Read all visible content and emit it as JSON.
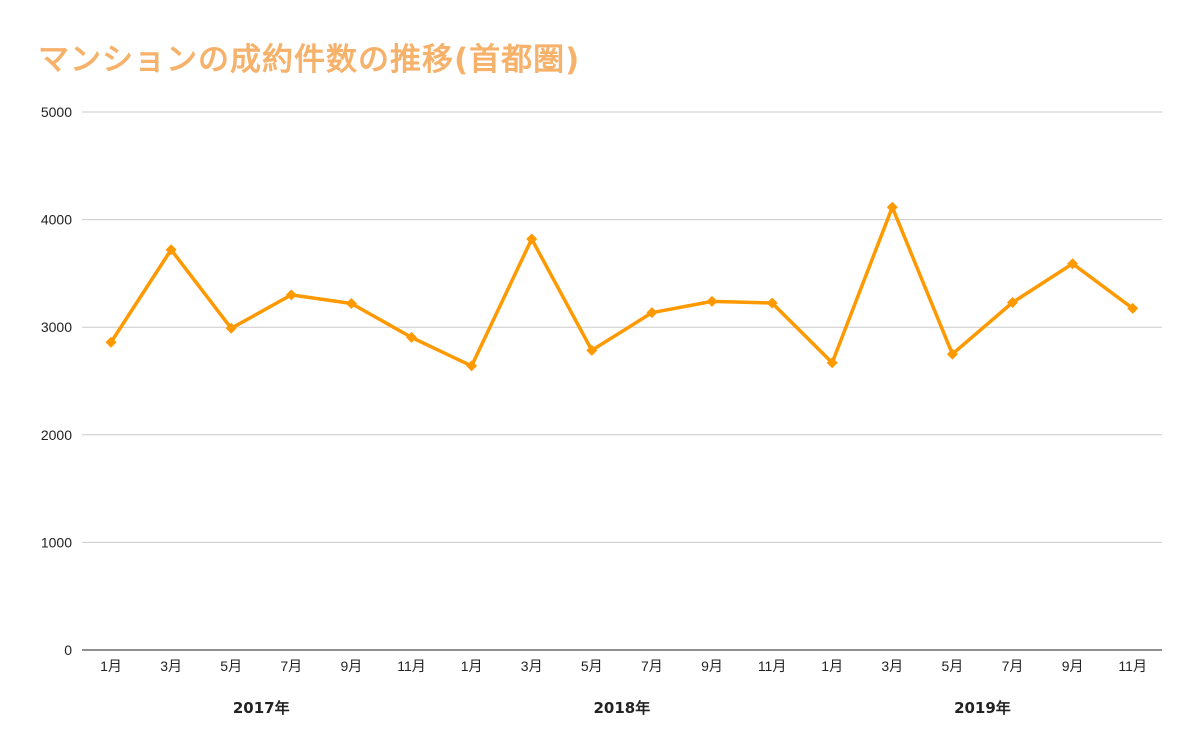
{
  "chart_data": {
    "type": "line",
    "title": "マンションの成約件数の推移(首都圏)",
    "xlabel": "",
    "ylabel": "",
    "ylim": [
      0,
      5000
    ],
    "yticks": [
      0,
      1000,
      2000,
      3000,
      4000,
      5000
    ],
    "grid": true,
    "legend": "none",
    "categories": [
      "1月",
      "3月",
      "5月",
      "7月",
      "9月",
      "11月",
      "1月",
      "3月",
      "5月",
      "7月",
      "9月",
      "11月",
      "1月",
      "3月",
      "5月",
      "7月",
      "9月",
      "11月"
    ],
    "groups": [
      {
        "label": "2017年",
        "start": 0,
        "end": 5
      },
      {
        "label": "2018年",
        "start": 6,
        "end": 11
      },
      {
        "label": "2019年",
        "start": 12,
        "end": 17
      }
    ],
    "series": [
      {
        "values": [
          2860,
          3720,
          2990,
          3300,
          3220,
          2905,
          2640,
          3820,
          2785,
          3135,
          3240,
          3225,
          2670,
          4115,
          2750,
          3230,
          3590,
          3175
        ],
        "color": "#ff9900"
      }
    ]
  },
  "colors": {
    "title": "#f6b26b",
    "line": "#ff9900",
    "grid": "#cccccc",
    "axis": "#222222"
  }
}
